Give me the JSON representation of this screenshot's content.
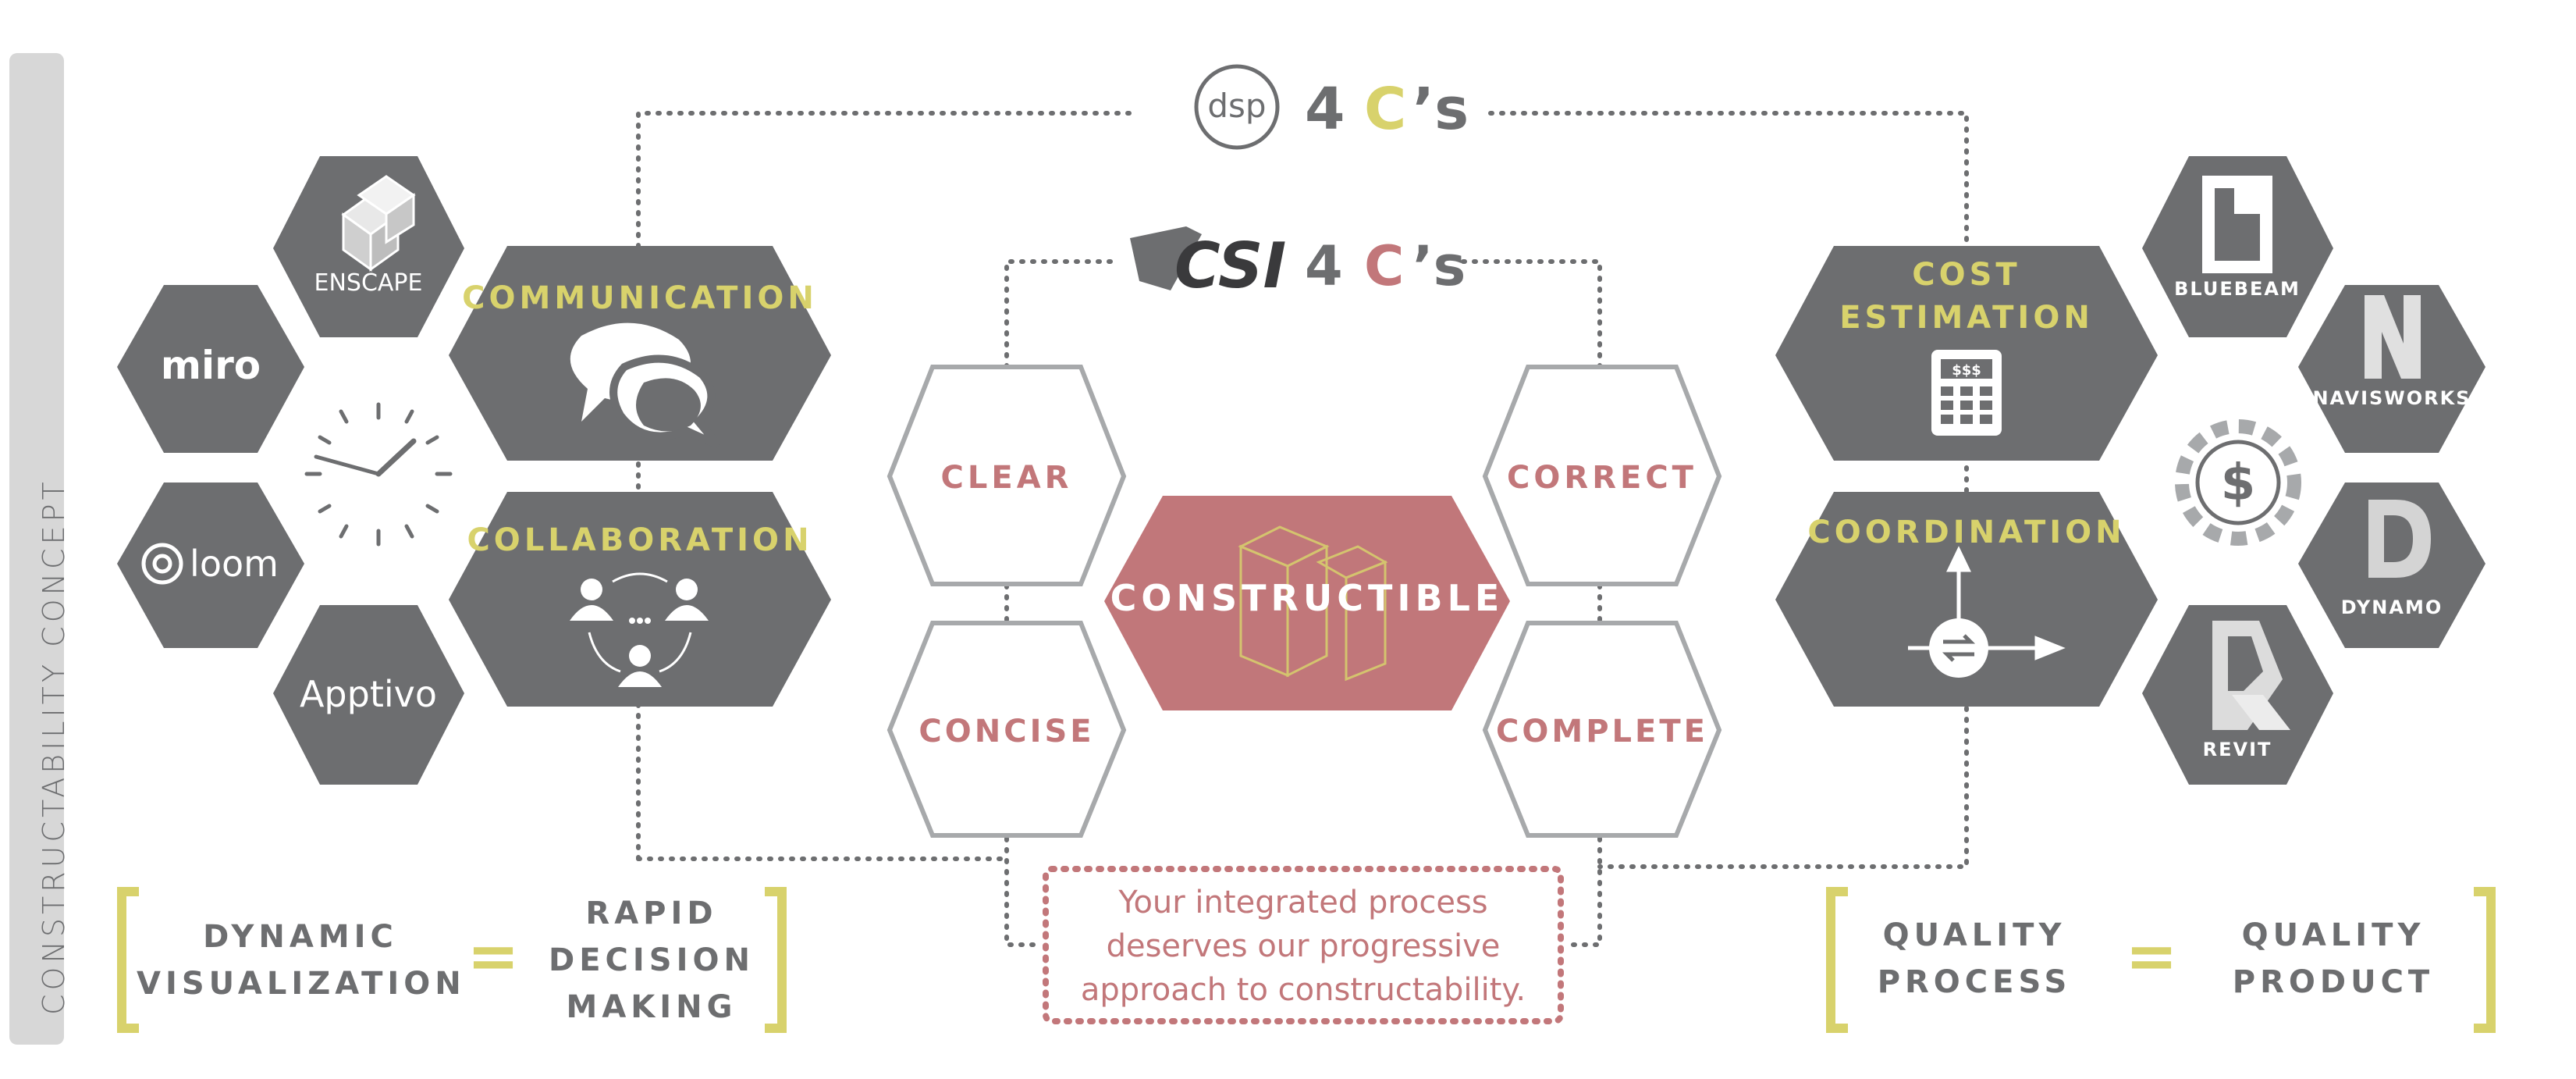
{
  "sidebar": {
    "title": "CONSTRUCTABILITY CONCEPT"
  },
  "dsp_header": {
    "logo_text": "dsp",
    "number": "4",
    "c_letter": "C",
    "suffix": "’s"
  },
  "csi_header": {
    "logo_text": "CSI",
    "number": "4",
    "c_letter": "C",
    "suffix": "’s"
  },
  "tools_left": {
    "enscape": "ENSCAPE",
    "miro": "miro",
    "loom": "loom",
    "apptivo": "Apptivo"
  },
  "left_hexes": {
    "communication": "COMMUNICATION",
    "collaboration": "COLLABORATION"
  },
  "csi_cs": {
    "clear": "CLEAR",
    "concise": "CONCISE",
    "correct": "CORRECT",
    "complete": "COMPLETE",
    "center": "CONSTRUCTIBLE"
  },
  "right_hexes": {
    "cost_line1": "COST",
    "cost_line2": "ESTIMATION",
    "calculator_text": "$$$",
    "coordination": "COORDINATION"
  },
  "tools_right": {
    "bluebeam": "BLUEBEAM",
    "navisworks": "NAVISWORKS",
    "dynamo": "DYNAMO",
    "revit": "REVIT",
    "dollar": "$"
  },
  "equation_left": {
    "lhs_line1": "DYNAMIC",
    "lhs_line2": "VISUALIZATION",
    "equals": "=",
    "rhs_line1": "RAPID",
    "rhs_line2": "DECISION",
    "rhs_line3": "MAKING"
  },
  "equation_right": {
    "lhs_line1": "QUALITY",
    "lhs_line2": "PROCESS",
    "equals": "=",
    "rhs_line1": "QUALITY",
    "rhs_line2": "PRODUCT"
  },
  "tagline": {
    "line1": "Your integrated process",
    "line2": "deserves our progressive",
    "line3": "approach to constructability."
  },
  "colors": {
    "gray_hex": "#6d6e70",
    "accent_yellow": "#d8d26c",
    "accent_red": "#c2777a",
    "center_fill": "#c1777a",
    "outline_gray": "#a7a9ab"
  }
}
